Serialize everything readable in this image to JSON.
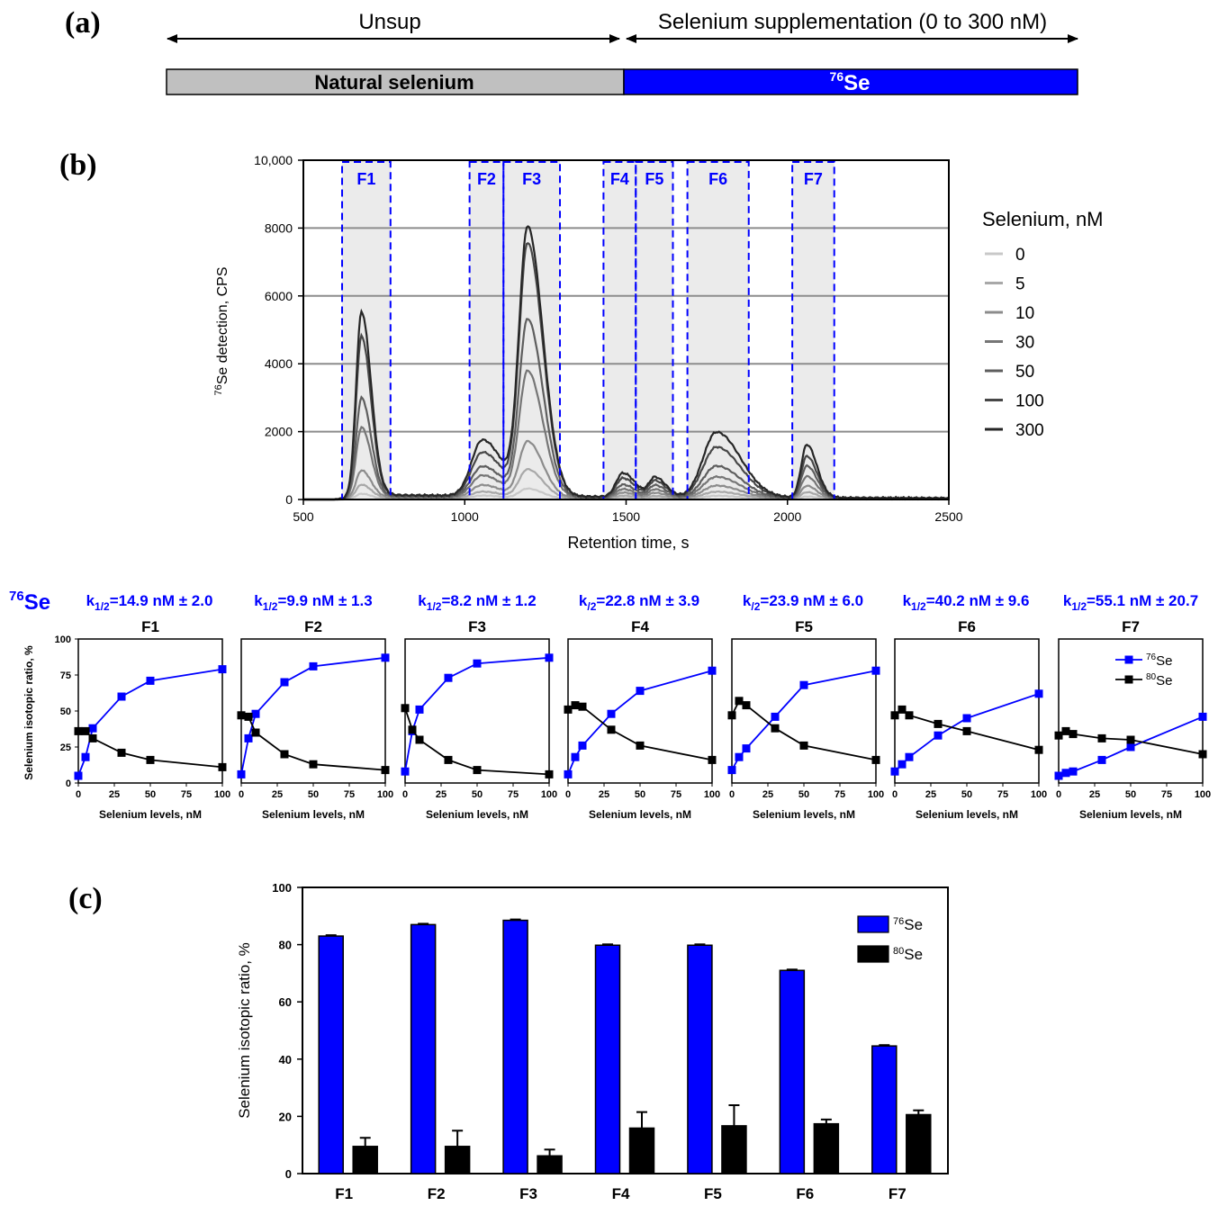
{
  "colors": {
    "blue": "#0000ff",
    "black": "#000000",
    "grid": "#8c8c8c",
    "shade": "#ebebeb",
    "bar_gray": "#c0c0c0"
  },
  "panel_a": {
    "label": "(a)",
    "left_label": "Unsup",
    "right_label": "Selenium supplementation (0 to 300 nM)",
    "natural_label": "Natural selenium",
    "se76_sup": "76",
    "se76_text": "Se"
  },
  "panel_b": {
    "label": "(b)",
    "ylabel_sup": "76",
    "ylabel_text": "Se detection, CPS",
    "xlabel": "Retention time, s",
    "legend_title": "Selenium, nM",
    "fraction_labels": [
      "F1",
      "F2",
      "F3",
      "F4",
      "F5",
      "F6",
      "F7"
    ],
    "corner_label_sup": "76",
    "corner_label_text": "Se",
    "k_labels": [
      {
        "pre": "k",
        "sub": "1/2",
        "post": "=14.9 nM ± 2.0"
      },
      {
        "pre": "k",
        "sub": "1/2",
        "post": "=9.9 nM ± 1.3"
      },
      {
        "pre": "k",
        "sub": "1/2",
        "post": "=8.2 nM ± 1.2"
      },
      {
        "pre": "k",
        "sub": "/2",
        "post": "=22.8 nM ± 3.9"
      },
      {
        "pre": "k",
        "sub": "/2",
        "post": "=23.9 nM ± 6.0"
      },
      {
        "pre": "k",
        "sub": "1/2",
        "post": "=40.2 nM ± 9.6"
      },
      {
        "pre": "k",
        "sub": "1/2",
        "post": "=55.1 nM ± 20.7"
      }
    ],
    "small_ylabel": "Selenium isotopic ratio, %",
    "small_xlabel": "Selenium levels, nM",
    "small_legend": [
      {
        "sup": "76",
        "text": "Se"
      },
      {
        "sup": "80",
        "text": "Se"
      }
    ]
  },
  "panel_c": {
    "label": "(c)"
  },
  "chart_data": [
    {
      "type": "line",
      "title": "",
      "xlabel": "Retention time, s",
      "ylabel": "76Se detection, CPS",
      "xlim": [
        500,
        2500
      ],
      "ylim": [
        0,
        10000
      ],
      "xticks": [
        "500",
        "1000",
        "1500",
        "2000",
        "2500"
      ],
      "yticks": [
        "0",
        "2000",
        "4000",
        "6000",
        "8000",
        "10,000"
      ],
      "grid": true,
      "legend_position": "right",
      "fractions": [
        {
          "name": "F1",
          "start": 620,
          "end": 770
        },
        {
          "name": "F2",
          "start": 1015,
          "end": 1120
        },
        {
          "name": "F3",
          "start": 1120,
          "end": 1295
        },
        {
          "name": "F4",
          "start": 1430,
          "end": 1530
        },
        {
          "name": "F5",
          "start": 1530,
          "end": 1645
        },
        {
          "name": "F6",
          "start": 1690,
          "end": 1880
        },
        {
          "name": "F7",
          "start": 2015,
          "end": 2145
        }
      ],
      "peaks": [
        {
          "fraction": "F1",
          "center": 680,
          "width": 22,
          "heights": [
            150,
            400,
            800,
            2050,
            2900,
            4700,
            5400
          ]
        },
        {
          "fraction": "F2",
          "center": 1055,
          "width": 45,
          "heights": [
            100,
            200,
            380,
            650,
            900,
            1300,
            1650
          ]
        },
        {
          "fraction": "F3",
          "center": 1195,
          "width": 35,
          "heights": [
            300,
            850,
            1650,
            3700,
            5200,
            7400,
            7850
          ]
        },
        {
          "fraction": "F4",
          "center": 1490,
          "width": 28,
          "heights": [
            40,
            90,
            170,
            260,
            380,
            560,
            700
          ]
        },
        {
          "fraction": "F5",
          "center": 1590,
          "width": 25,
          "heights": [
            30,
            80,
            160,
            250,
            360,
            480,
            570
          ]
        },
        {
          "fraction": "F6",
          "center": 1780,
          "width": 55,
          "heights": [
            100,
            210,
            380,
            630,
            940,
            1490,
            1920
          ]
        },
        {
          "fraction": "F7",
          "center": 2060,
          "width": 23,
          "heights": [
            80,
            200,
            380,
            650,
            950,
            1230,
            1560
          ]
        }
      ],
      "series": [
        {
          "name": "0",
          "color": "#c8c8c8"
        },
        {
          "name": "5",
          "color": "#a8a8a8"
        },
        {
          "name": "10",
          "color": "#8c8c8c"
        },
        {
          "name": "30",
          "color": "#767676"
        },
        {
          "name": "50",
          "color": "#5e5e5e"
        },
        {
          "name": "100",
          "color": "#474747"
        },
        {
          "name": "300",
          "color": "#262626"
        }
      ]
    },
    {
      "type": "line",
      "xlabel": "Selenium levels, nM",
      "ylabel": "Selenium isotopic ratio, %",
      "x": [
        0,
        5,
        10,
        30,
        50,
        100
      ],
      "xlim": [
        0,
        100
      ],
      "ylim": [
        0,
        100
      ],
      "xticks": [
        "0",
        "25",
        "50",
        "75",
        "100"
      ],
      "yticks": [
        "0",
        "25",
        "50",
        "75",
        "100"
      ],
      "legend_position": "top-right",
      "panels": [
        {
          "title": "F1",
          "se76": [
            5,
            18,
            38,
            60,
            71,
            79
          ],
          "se80": [
            36,
            36,
            31,
            21,
            16,
            11
          ]
        },
        {
          "title": "F2",
          "se76": [
            6,
            31,
            48,
            70,
            81,
            87
          ],
          "se80": [
            47,
            46,
            35,
            20,
            13,
            9
          ]
        },
        {
          "title": "F3",
          "se76": [
            8,
            36,
            51,
            73,
            83,
            87
          ],
          "se80": [
            52,
            37,
            30,
            16,
            9,
            6
          ]
        },
        {
          "title": "F4",
          "se76": [
            6,
            18,
            26,
            48,
            64,
            78
          ],
          "se80": [
            51,
            54,
            53,
            37,
            26,
            16
          ]
        },
        {
          "title": "F5",
          "se76": [
            9,
            18,
            24,
            46,
            68,
            78
          ],
          "se80": [
            47,
            57,
            54,
            38,
            26,
            16
          ]
        },
        {
          "title": "F6",
          "se76": [
            8,
            13,
            18,
            33,
            45,
            62
          ],
          "se80": [
            47,
            51,
            47,
            41,
            36,
            23
          ]
        },
        {
          "title": "F7",
          "se76": [
            5,
            7,
            8,
            16,
            25,
            46
          ],
          "se80": [
            33,
            36,
            34,
            31,
            30,
            20
          ]
        }
      ]
    },
    {
      "type": "bar",
      "categories": [
        "F1",
        "F2",
        "F3",
        "F4",
        "F5",
        "F6",
        "F7"
      ],
      "ylabel": "Selenium isotopic ratio, %",
      "ylim": [
        0,
        100
      ],
      "yticks": [
        "0",
        "20",
        "40",
        "60",
        "80",
        "100"
      ],
      "legend_position": "top-right",
      "series": [
        {
          "name": "76Se",
          "sup": "76",
          "text": "Se",
          "color": "#0000ff",
          "values": [
            83,
            87,
            88.5,
            79.8,
            79.8,
            71,
            44.6
          ],
          "errors": [
            0.3,
            0.3,
            0.3,
            0.3,
            0.3,
            0.3,
            0.3
          ]
        },
        {
          "name": "80Se",
          "sup": "80",
          "text": "Se",
          "color": "#000000",
          "values": [
            9.5,
            9.5,
            6.2,
            15.9,
            16.7,
            17.4,
            20.6
          ],
          "errors": [
            3,
            5.5,
            2.2,
            5.6,
            7.2,
            1.5,
            1.5
          ]
        }
      ]
    }
  ]
}
